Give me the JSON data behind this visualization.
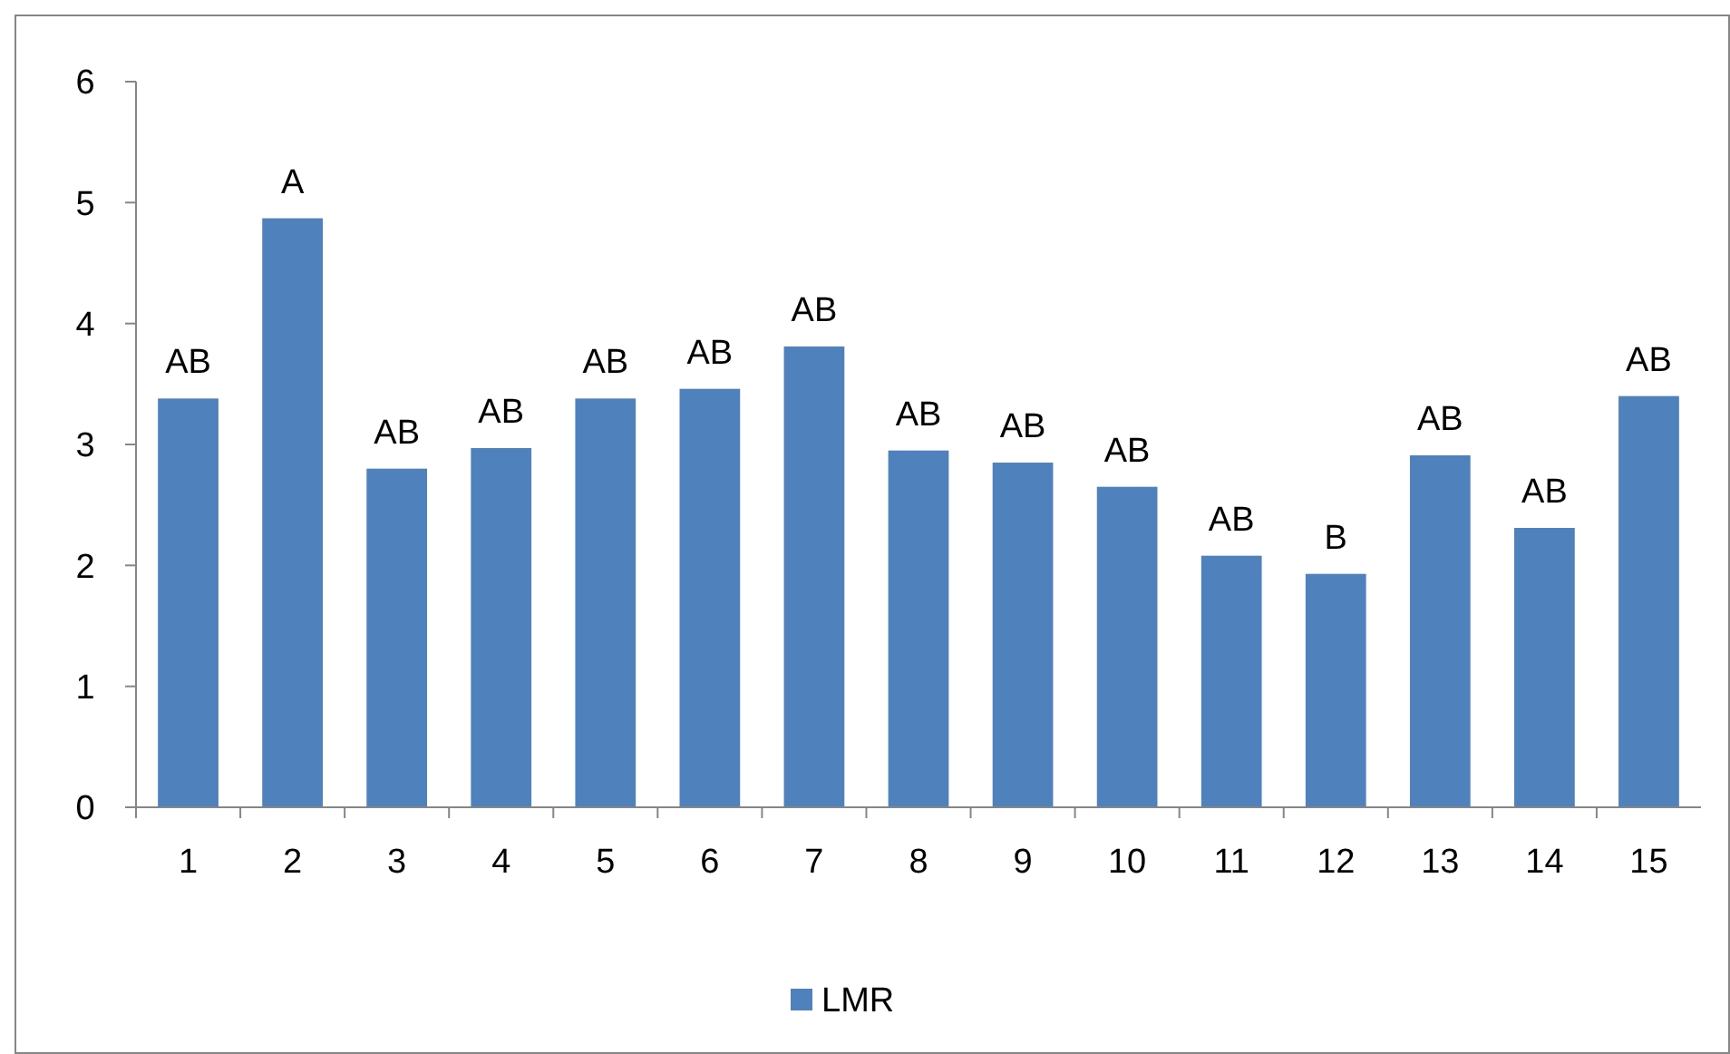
{
  "chart_data": {
    "type": "bar",
    "categories": [
      "1",
      "2",
      "3",
      "4",
      "5",
      "6",
      "7",
      "8",
      "9",
      "10",
      "11",
      "12",
      "13",
      "14",
      "15"
    ],
    "series": [
      {
        "name": "LMR",
        "color": "#4f81bd",
        "values": [
          3.38,
          4.87,
          2.8,
          2.97,
          3.38,
          3.46,
          3.81,
          2.95,
          2.85,
          2.65,
          2.08,
          1.93,
          2.91,
          2.31,
          3.4
        ]
      }
    ],
    "ylim": [
      0,
      6
    ],
    "yticks": [
      0,
      1,
      2,
      3,
      4,
      5,
      6
    ],
    "grid": false,
    "legend": "bottom",
    "annotations": [
      {
        "text": "AB",
        "x": "1",
        "y": 3.38
      },
      {
        "text": "A",
        "x": "2",
        "y": 4.87
      },
      {
        "text": "AB",
        "x": "3",
        "y": 2.8
      },
      {
        "text": "AB",
        "x": "4",
        "y": 2.97
      },
      {
        "text": "AB",
        "x": "5",
        "y": 3.38
      },
      {
        "text": "AB",
        "x": "6",
        "y": 3.46
      },
      {
        "text": "AB",
        "x": "7",
        "y": 3.81
      },
      {
        "text": "AB",
        "x": "8",
        "y": 2.95
      },
      {
        "text": "AB",
        "x": "9",
        "y": 2.85
      },
      {
        "text": "AB",
        "x": "10",
        "y": 2.65
      },
      {
        "text": "AB",
        "x": "11",
        "y": 2.08
      },
      {
        "text": "B",
        "x": "12",
        "y": 1.93
      },
      {
        "text": "AB",
        "x": "13",
        "y": 2.91
      },
      {
        "text": "AB",
        "x": "14",
        "y": 2.31
      },
      {
        "text": "AB",
        "x": "15",
        "y": 3.4
      }
    ]
  }
}
